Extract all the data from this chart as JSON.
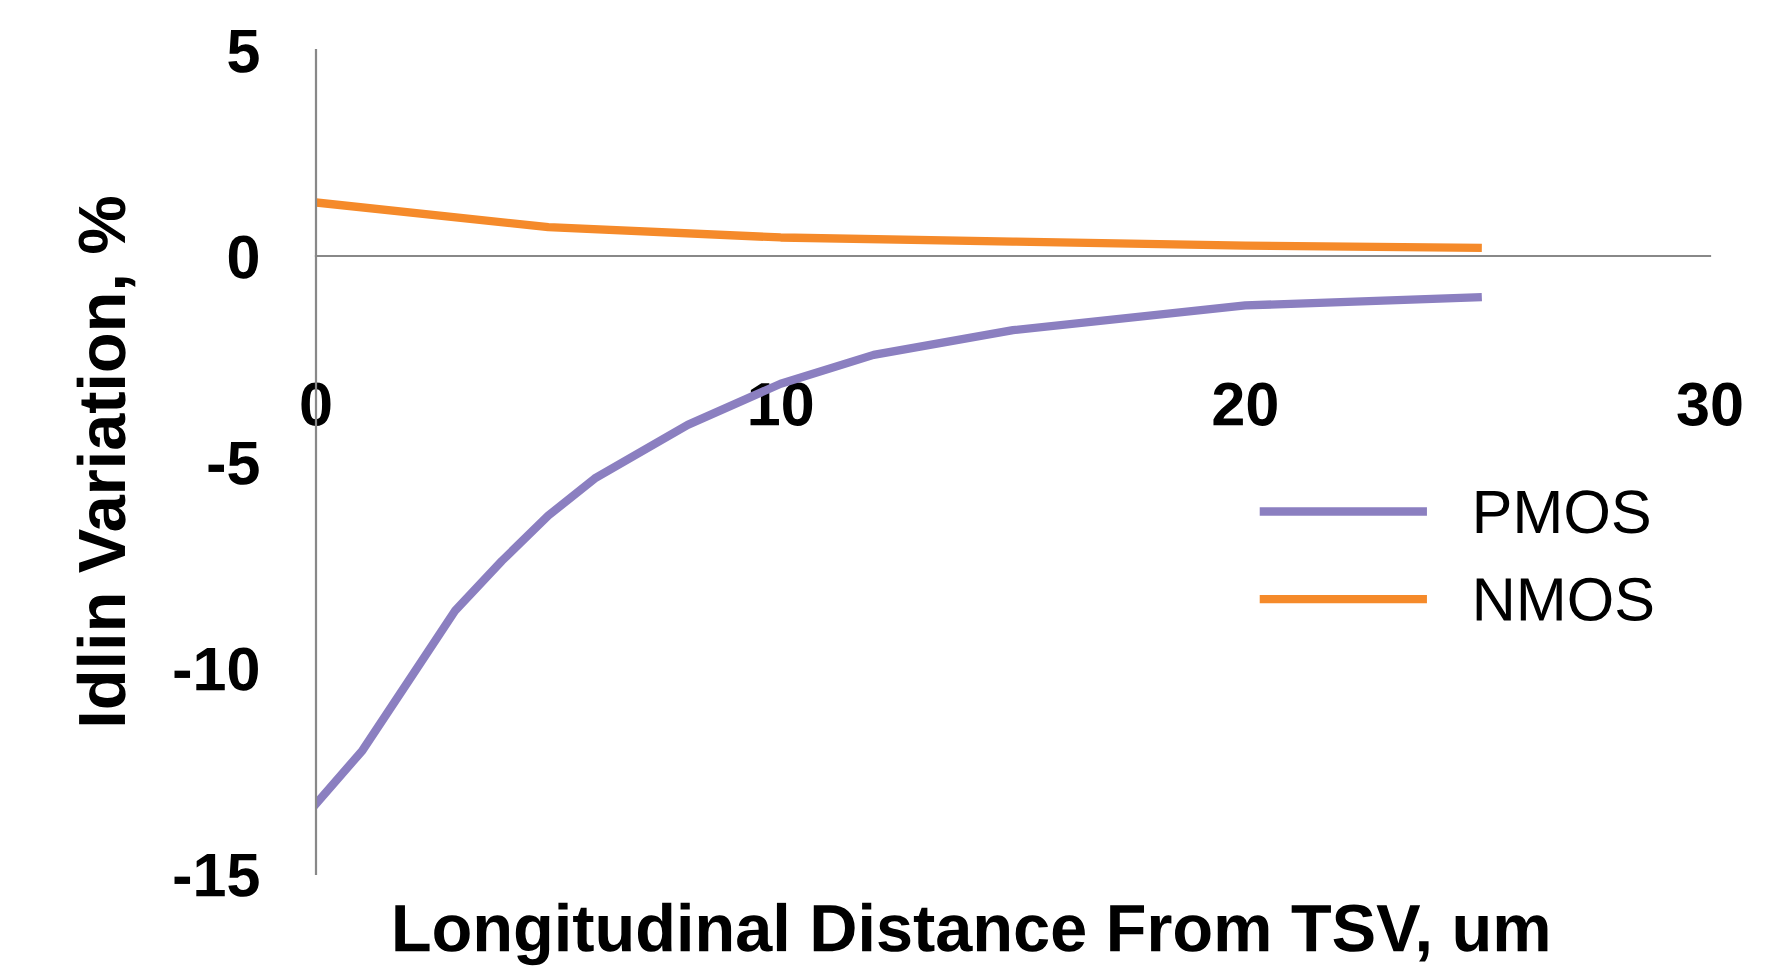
{
  "chart_data": {
    "type": "line",
    "xlabel": "Longitudinal Distance From TSV, um",
    "ylabel": "Idlin Variation, %",
    "xlim": [
      0,
      30
    ],
    "xticks": [
      0,
      10,
      20,
      30
    ],
    "ylim": [
      -15,
      5
    ],
    "yticks": [
      -15,
      -10,
      -5,
      0,
      5
    ],
    "grid": false,
    "legend": "right",
    "marker": "none",
    "line_style": "solid",
    "series": [
      {
        "name": "PMOS",
        "color": "#8b7fc0",
        "x": [
          0,
          1,
          2,
          3,
          4,
          5,
          6,
          8,
          10,
          12,
          15,
          20,
          25
        ],
        "values": [
          -13.3,
          -12,
          -10.3,
          -8.6,
          -7.4,
          -6.3,
          -5.4,
          -4.1,
          -3.1,
          -2.4,
          -1.8,
          -1.2,
          -1.0
        ]
      },
      {
        "name": "NMOS",
        "color": "#f58a2a",
        "x": [
          0,
          5,
          10,
          15,
          20,
          25
        ],
        "values": [
          1.3,
          0.7,
          0.45,
          0.35,
          0.25,
          0.2
        ]
      }
    ]
  }
}
